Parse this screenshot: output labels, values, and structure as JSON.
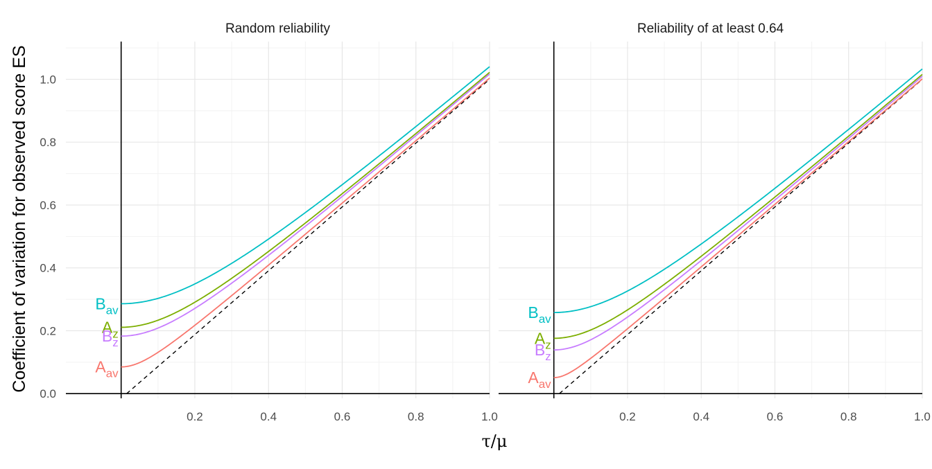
{
  "chart_data": {
    "type": "line",
    "ylabel": "Coefficient of variation for observed score ES",
    "xlabel": "τ/μ",
    "xlim": [
      -0.15,
      1.0
    ],
    "ylim": [
      -0.015,
      1.12
    ],
    "x_ticks": [
      0.2,
      0.4,
      0.6,
      0.8,
      1.0
    ],
    "x_tick_labels": [
      "0.2",
      "0.4",
      "0.6",
      "0.8",
      "1.0"
    ],
    "y_ticks": [
      0.0,
      0.2,
      0.4,
      0.6,
      0.8,
      1.0
    ],
    "y_tick_labels": [
      "0.0",
      "0.2",
      "0.4",
      "0.6",
      "0.8",
      "1.0"
    ],
    "grid": true,
    "legend": "none",
    "vertical_reference_x": 0,
    "identity_line_style": "dashed",
    "colors": {
      "Aav": "#F8766D",
      "Az": "#7CAE00",
      "Bav": "#00BFC4",
      "Bz": "#C77CFF"
    },
    "panels": [
      {
        "title": "Random reliability",
        "series": [
          {
            "key": "Bav",
            "label_main": "B",
            "label_sub": "av",
            "start": 0.286
          },
          {
            "key": "Az",
            "label_main": "A",
            "label_sub": "z",
            "start": 0.211
          },
          {
            "key": "Bz",
            "label_main": "B",
            "label_sub": "z",
            "start": 0.183
          },
          {
            "key": "Aav",
            "label_main": "A",
            "label_sub": "av",
            "start": 0.085
          }
        ]
      },
      {
        "title": "Reliability of at least 0.64",
        "series": [
          {
            "key": "Bav",
            "label_main": "B",
            "label_sub": "av",
            "start": 0.258
          },
          {
            "key": "Az",
            "label_main": "A",
            "label_sub": "z",
            "start": 0.176
          },
          {
            "key": "Bz",
            "label_main": "B",
            "label_sub": "z",
            "start": 0.139
          },
          {
            "key": "Aav",
            "label_main": "A",
            "label_sub": "av",
            "start": 0.051
          }
        ]
      }
    ]
  }
}
